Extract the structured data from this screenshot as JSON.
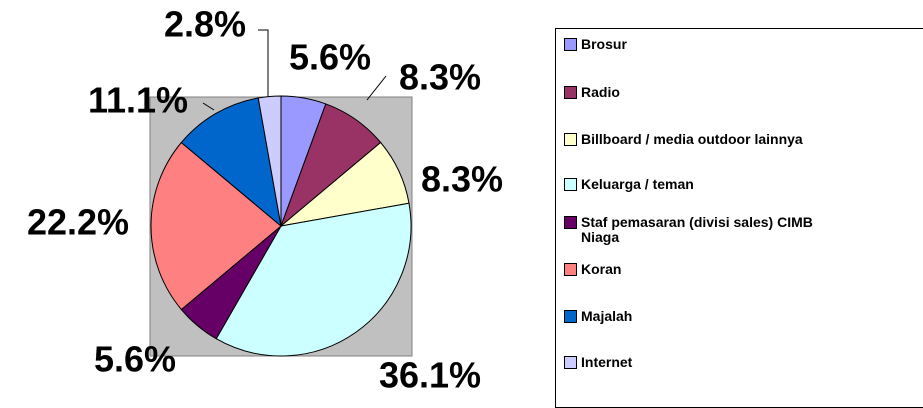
{
  "chart_data": {
    "type": "pie",
    "categories": [
      "Brosur",
      "Radio",
      "Billboard / media outdoor lainnya",
      "Keluarga / teman",
      "Staf pemasaran (divisi sales) CIMB Niaga",
      "Koran",
      "Majalah",
      "Internet"
    ],
    "values": [
      5.6,
      8.3,
      8.3,
      36.1,
      5.6,
      22.2,
      11.1,
      2.8
    ],
    "value_labels": [
      "5.6%",
      "8.3%",
      "8.3%",
      "36.1%",
      "5.6%",
      "22.2%",
      "11.1%",
      "2.8%"
    ],
    "colors": [
      "#9999ff",
      "#993366",
      "#ffffcc",
      "#ccffff",
      "#660066",
      "#ff8080",
      "#0066cc",
      "#ccccff"
    ],
    "legend": "right"
  }
}
